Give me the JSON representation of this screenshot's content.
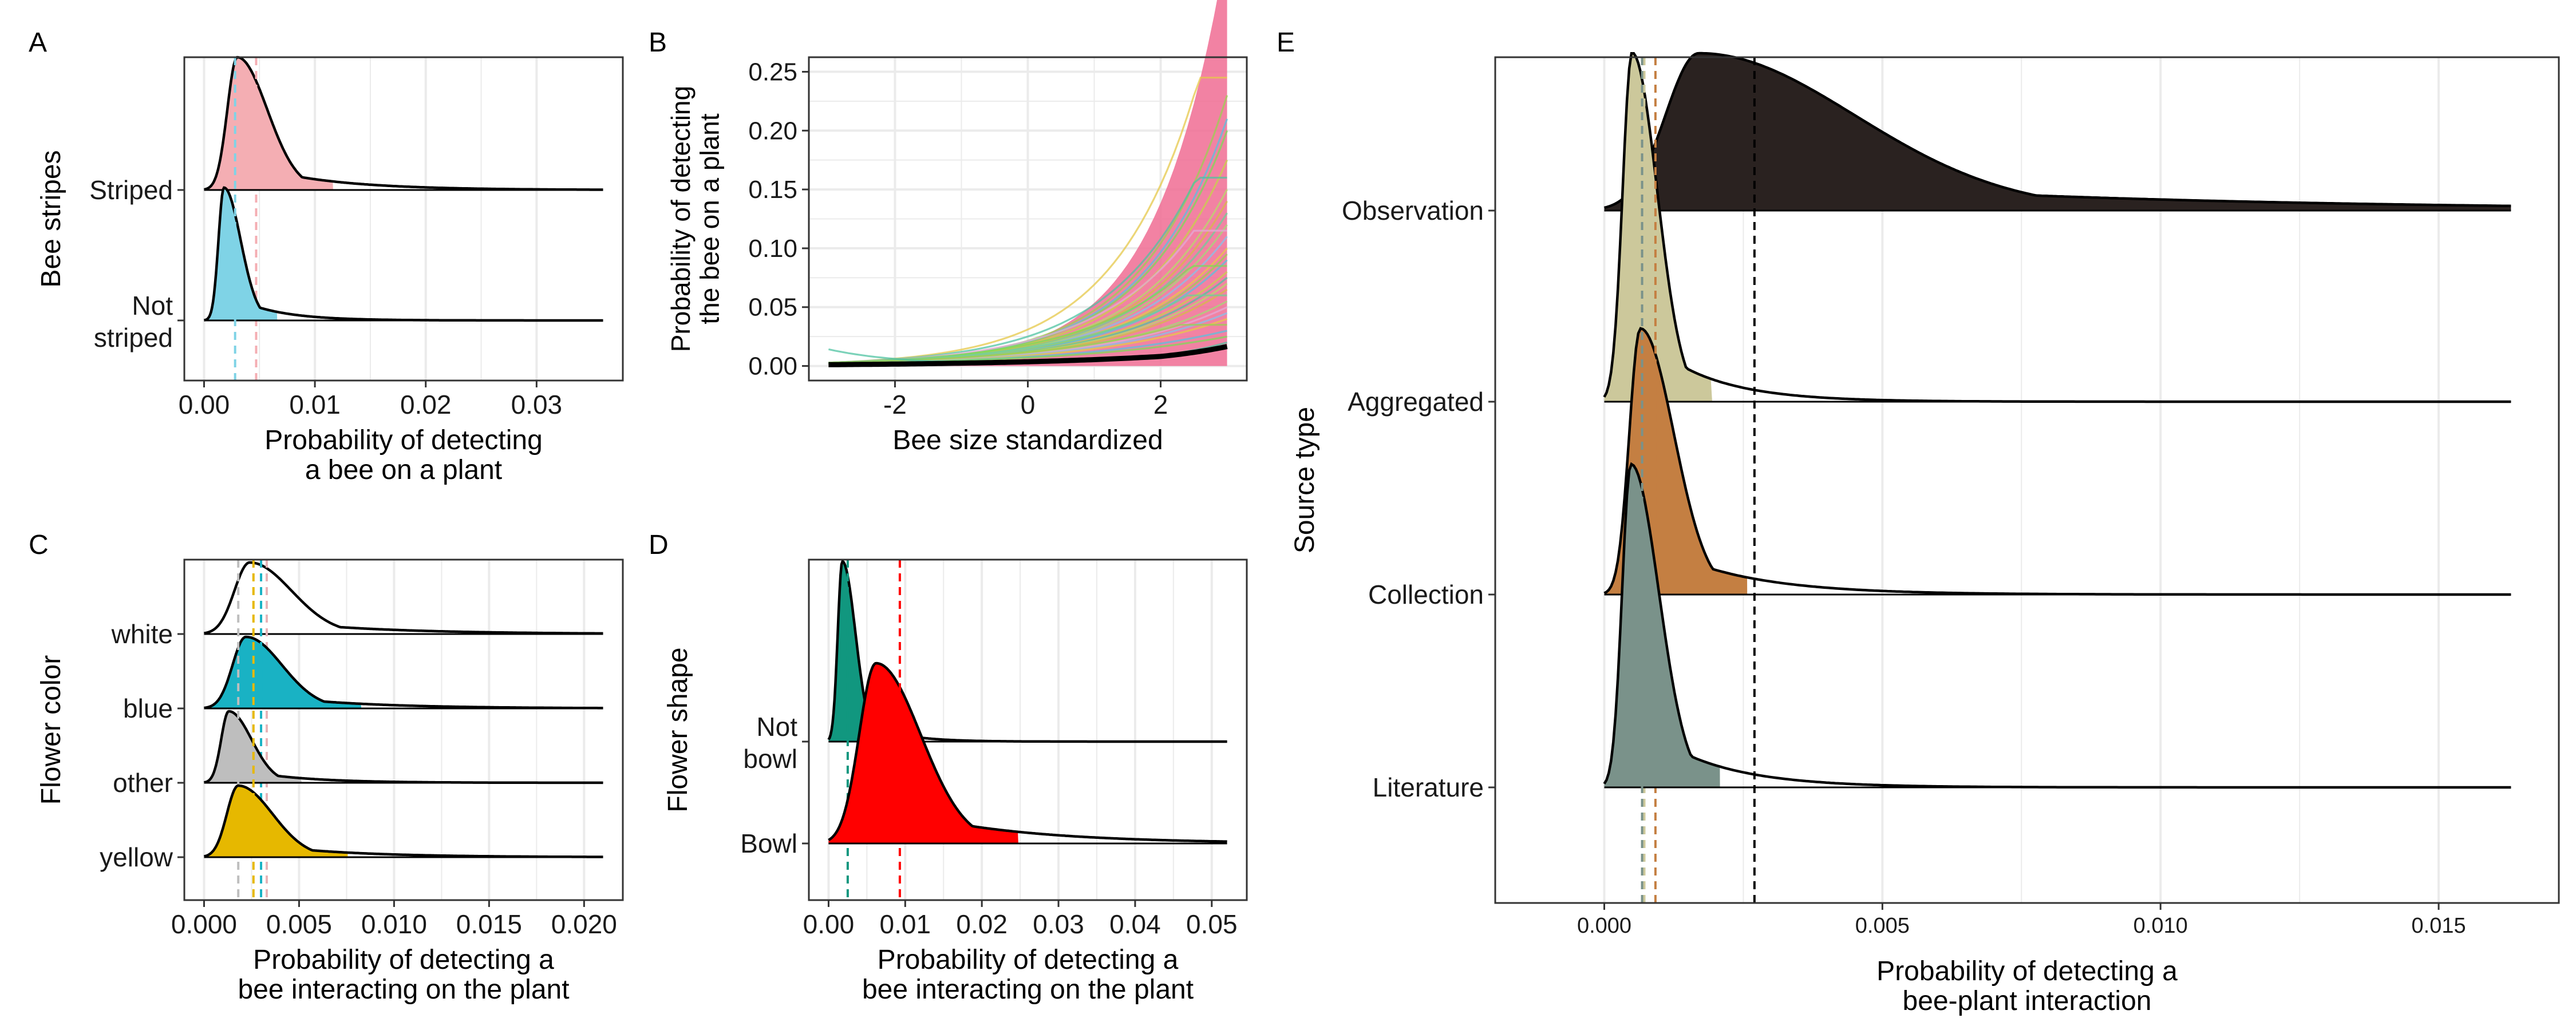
{
  "colors": {
    "striped": "#F4AEB3",
    "not_striped": "#7FD3E6",
    "white": "#FFFFFF",
    "blue": "#19B2C4",
    "other": "#BEBEBE",
    "yellow": "#E6B800",
    "not_bowl": "#11977F",
    "bowl": "#FF0000",
    "observation": "#2A2220",
    "aggregated": "#CCC89B",
    "collection": "#C47F42",
    "literature": "#7A928A",
    "curve_pink": "#F06C93",
    "mean_line": "#000000",
    "grid": "#EBEBEB",
    "panel_border": "#333333"
  },
  "chart_data": [
    {
      "panel": "A",
      "type": "area",
      "subtype": "ridgeline",
      "xlabel": [
        "Probability of detecting",
        "a bee on a plant"
      ],
      "ylabel": "Bee stripes",
      "xlim": [
        0,
        0.036
      ],
      "xticks": [
        "0.00",
        "0.01",
        "0.02",
        "0.03"
      ],
      "xtick_values": [
        0,
        0.01,
        0.02,
        0.03
      ],
      "grid": true,
      "series": [
        {
          "label": [
            "Striped"
          ],
          "peak_x": 0.003,
          "left_sd": 0.0009,
          "right_sd": 0.0027,
          "mean": 0.0047,
          "color_key": "striped"
        },
        {
          "label": [
            "Not",
            "striped"
          ],
          "peak_x": 0.0018,
          "left_sd": 0.0005,
          "right_sd": 0.0015,
          "mean": 0.0028,
          "color_key": "not_striped"
        }
      ]
    },
    {
      "panel": "B",
      "type": "line",
      "xlabel": [
        "Bee size standardized"
      ],
      "ylabel": [
        "Probability of detecting",
        "the bee on a plant"
      ],
      "xlim": [
        -3,
        3
      ],
      "ylim": [
        0,
        0.25
      ],
      "xticks": [
        "-2",
        "0",
        "2"
      ],
      "xtick_values": [
        -2,
        0,
        2
      ],
      "yticks": [
        "0.00",
        "0.05",
        "0.10",
        "0.15",
        "0.20",
        "0.25"
      ],
      "ytick_values": [
        0,
        0.05,
        0.1,
        0.15,
        0.2,
        0.25
      ],
      "grid": true,
      "mean_curve": {
        "x": [
          -3,
          -2,
          -1,
          0,
          1,
          2,
          3
        ],
        "y": [
          0.0011,
          0.0016,
          0.0024,
          0.0036,
          0.0054,
          0.0081,
          0.0165
        ]
      },
      "draw_curves": {
        "values_at_x3": [
          0.245,
          0.23,
          0.21,
          0.2,
          0.175,
          0.16,
          0.15,
          0.14,
          0.13,
          0.12,
          0.115,
          0.11,
          0.1,
          0.095,
          0.09,
          0.085,
          0.08,
          0.075,
          0.07,
          0.065,
          0.06,
          0.055,
          0.05,
          0.045,
          0.04,
          0.035,
          0.03,
          0.025
        ],
        "x_start": -3,
        "x_end": 3
      }
    },
    {
      "panel": "C",
      "type": "area",
      "subtype": "ridgeline",
      "xlabel": [
        "Probability of detecting a",
        "bee interacting on the plant"
      ],
      "ylabel": "Flower color",
      "xlim": [
        0,
        0.021
      ],
      "xticks": [
        "0.000",
        "0.005",
        "0.010",
        "0.015",
        "0.020"
      ],
      "xtick_values": [
        0,
        0.005,
        0.01,
        0.015,
        0.02
      ],
      "grid": true,
      "series": [
        {
          "label": [
            "white"
          ],
          "peak_x": 0.0024,
          "left_sd": 0.0008,
          "right_sd": 0.0022,
          "mean": 0.0033,
          "color_key": "white"
        },
        {
          "label": [
            "blue"
          ],
          "peak_x": 0.0022,
          "left_sd": 0.0007,
          "right_sd": 0.0019,
          "mean": 0.003,
          "color_key": "blue"
        },
        {
          "label": [
            "other"
          ],
          "peak_x": 0.0013,
          "left_sd": 0.0004,
          "right_sd": 0.0012,
          "mean": 0.0018,
          "color_key": "other"
        },
        {
          "label": [
            "yellow"
          ],
          "peak_x": 0.0018,
          "left_sd": 0.0006,
          "right_sd": 0.0018,
          "mean": 0.0026,
          "color_key": "yellow"
        }
      ]
    },
    {
      "panel": "D",
      "type": "area",
      "subtype": "ridgeline",
      "xlabel": [
        "Probability of detecting a",
        "bee interacting on the plant"
      ],
      "ylabel": "Flower shape",
      "xlim": [
        0,
        0.052
      ],
      "xticks": [
        "0.00",
        "0.01",
        "0.02",
        "0.03",
        "0.04",
        "0.05"
      ],
      "xtick_values": [
        0,
        0.01,
        0.02,
        0.03,
        0.04,
        0.05
      ],
      "grid": true,
      "series": [
        {
          "label": [
            "Not",
            "bowl"
          ],
          "peak_x": 0.0018,
          "left_sd": 0.0006,
          "right_sd": 0.0017,
          "mean": 0.0025,
          "color_key": "not_bowl"
        },
        {
          "label": [
            "Bowl"
          ],
          "peak_x": 0.0062,
          "left_sd": 0.0022,
          "right_sd": 0.0058,
          "mean": 0.0093,
          "color_key": "bowl"
        }
      ]
    },
    {
      "panel": "E",
      "type": "area",
      "subtype": "ridgeline",
      "xlabel": [
        "Probability of detecting a",
        "bee-plant interaction"
      ],
      "ylabel": "Source type",
      "xlim": [
        -0.0011,
        0.0163
      ],
      "xticks": [
        "0.000",
        "0.005",
        "0.010",
        "0.015"
      ],
      "xtick_values": [
        0,
        0.005,
        0.01,
        0.015
      ],
      "grid": true,
      "series": [
        {
          "label": [
            "Observation"
          ],
          "peak_x": 0.0017,
          "left_sd": 0.0006,
          "right_sd": 0.0028,
          "mean": 0.0027,
          "color_key": "observation"
        },
        {
          "label": [
            "Aggregated"
          ],
          "peak_x": 0.0005,
          "left_sd": 0.00017,
          "right_sd": 0.00045,
          "mean": 0.00072,
          "color_key": "aggregated"
        },
        {
          "label": [
            "Collection"
          ],
          "peak_x": 0.00065,
          "left_sd": 0.0002,
          "right_sd": 0.0006,
          "mean": 0.00092,
          "color_key": "collection"
        },
        {
          "label": [
            "Literature"
          ],
          "peak_x": 0.00048,
          "left_sd": 0.00016,
          "right_sd": 0.0005,
          "mean": 0.00068,
          "color_key": "literature"
        }
      ]
    }
  ],
  "panel_letters": [
    "A",
    "B",
    "C",
    "D",
    "E"
  ]
}
